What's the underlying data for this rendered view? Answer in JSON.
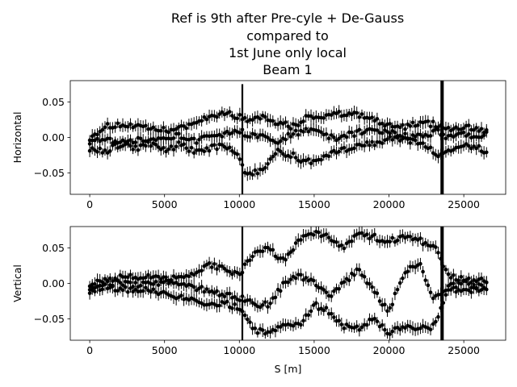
{
  "figure": {
    "title_lines": [
      "Ref is 9th after Pre-cyle + De-Gauss",
      "compared to",
      "1st June only local",
      "Beam 1"
    ]
  },
  "chart_data": [
    {
      "type": "scatter",
      "panel": "top",
      "ylabel": "Horizontal",
      "xlabel": "",
      "xlim": [
        -1300,
        27800
      ],
      "ylim": [
        -0.08,
        0.08
      ],
      "xticks": [
        0,
        5000,
        10000,
        15000,
        20000,
        25000
      ],
      "yticks": [
        -0.05,
        0.0,
        0.05
      ],
      "ytick_labels": [
        "−0.05",
        "0.00",
        "0.05"
      ],
      "error_bars": true,
      "color": "#000000",
      "grid": false,
      "spikes": [
        {
          "x": 10200,
          "y_range": [
            -0.08,
            0.075
          ]
        },
        {
          "x": 23500,
          "y_range": [
            -0.08,
            0.08
          ]
        },
        {
          "x": 23600,
          "y_range": [
            -0.08,
            0.08
          ]
        }
      ],
      "series": [
        {
          "x": [
            0,
            1000,
            2000,
            3000,
            4000,
            5000,
            6000,
            7000,
            8000,
            9000,
            9800,
            10500,
            11500,
            12500,
            13500,
            14500,
            15500,
            16500,
            17500,
            18500,
            19500,
            20500,
            21500,
            22500,
            23200,
            24000,
            25000,
            26000,
            26600
          ],
          "y": [
            0.0,
            0.015,
            0.018,
            0.015,
            0.012,
            0.01,
            0.012,
            0.02,
            0.03,
            0.035,
            0.03,
            0.025,
            0.03,
            0.022,
            0.015,
            0.028,
            0.03,
            0.032,
            0.035,
            0.03,
            0.02,
            0.012,
            0.018,
            0.02,
            0.018,
            0.012,
            0.015,
            0.012,
            0.01
          ]
        },
        {
          "x": [
            0,
            1000,
            2000,
            3000,
            4000,
            5000,
            6000,
            7000,
            8000,
            9000,
            9800,
            10500,
            11500,
            12500,
            13500,
            14500,
            15500,
            16500,
            17500,
            18500,
            19500,
            20500,
            21500,
            22500,
            23200,
            24000,
            25000,
            26000,
            26600
          ],
          "y": [
            -0.005,
            0.0,
            -0.008,
            -0.005,
            -0.002,
            0.0,
            0.002,
            -0.005,
            0.0,
            0.005,
            0.01,
            0.005,
            0.0,
            -0.005,
            0.005,
            0.01,
            0.005,
            0.0,
            0.005,
            0.01,
            0.008,
            0.005,
            0.0,
            0.005,
            0.008,
            0.0,
            0.005,
            0.0,
            0.005
          ]
        },
        {
          "x": [
            0,
            1000,
            2000,
            3000,
            4000,
            5000,
            6000,
            7000,
            8000,
            9000,
            9800,
            10500,
            11500,
            12500,
            13500,
            14500,
            15500,
            16500,
            17500,
            18500,
            19500,
            20500,
            21500,
            22500,
            23200,
            24000,
            25000,
            26000,
            26600
          ],
          "y": [
            -0.015,
            -0.02,
            -0.01,
            -0.015,
            -0.01,
            -0.018,
            -0.01,
            -0.02,
            -0.015,
            -0.01,
            -0.02,
            -0.055,
            -0.045,
            -0.02,
            -0.025,
            -0.035,
            -0.03,
            -0.02,
            -0.015,
            -0.01,
            -0.005,
            0.0,
            -0.005,
            -0.01,
            -0.03,
            -0.02,
            -0.01,
            -0.015,
            -0.02
          ]
        }
      ]
    },
    {
      "type": "scatter",
      "panel": "bottom",
      "ylabel": "Vertical",
      "xlabel": "S [m]",
      "xlim": [
        -1300,
        27800
      ],
      "ylim": [
        -0.08,
        0.08
      ],
      "xticks": [
        0,
        5000,
        10000,
        15000,
        20000,
        25000
      ],
      "xtick_labels": [
        "0",
        "5000",
        "10000",
        "15000",
        "20000",
        "25000"
      ],
      "yticks": [
        -0.05,
        0.0,
        0.05
      ],
      "ytick_labels": [
        "−0.05",
        "0.00",
        "0.05"
      ],
      "error_bars": true,
      "color": "#000000",
      "grid": false,
      "spikes": [
        {
          "x": 10200,
          "y_range": [
            -0.08,
            0.08
          ]
        },
        {
          "x": 23500,
          "y_range": [
            -0.08,
            0.08
          ]
        },
        {
          "x": 23600,
          "y_range": [
            -0.08,
            0.08
          ]
        }
      ],
      "series": [
        {
          "x": [
            0,
            1000,
            2000,
            3000,
            4000,
            5000,
            6000,
            7000,
            8000,
            9000,
            10000,
            11000,
            12000,
            13000,
            14000,
            15000,
            16000,
            17000,
            18000,
            19000,
            20000,
            21000,
            22000,
            23000,
            24000,
            25000,
            26000,
            26600
          ],
          "y": [
            0.0,
            0.005,
            0.008,
            0.01,
            0.008,
            0.005,
            0.01,
            0.015,
            0.025,
            0.02,
            0.01,
            0.045,
            0.05,
            0.03,
            0.06,
            0.07,
            0.065,
            0.05,
            0.07,
            0.065,
            0.06,
            0.065,
            0.06,
            0.055,
            0.01,
            0.005,
            0.005,
            0.002
          ]
        },
        {
          "x": [
            0,
            1000,
            2000,
            3000,
            4000,
            5000,
            6000,
            7000,
            8000,
            9000,
            10000,
            11000,
            12000,
            13000,
            14000,
            15000,
            16000,
            17000,
            18000,
            19000,
            20000,
            21000,
            22000,
            23000,
            24000,
            25000,
            26000,
            26600
          ],
          "y": [
            -0.005,
            0.0,
            0.002,
            -0.002,
            0.0,
            0.002,
            -0.002,
            -0.005,
            -0.01,
            -0.015,
            -0.02,
            -0.03,
            -0.03,
            0.0,
            0.01,
            0.0,
            -0.02,
            0.0,
            0.02,
            -0.01,
            -0.04,
            0.015,
            0.03,
            -0.02,
            -0.005,
            0.0,
            -0.005,
            0.0
          ]
        },
        {
          "x": [
            0,
            1000,
            2000,
            3000,
            4000,
            5000,
            6000,
            7000,
            8000,
            9000,
            10000,
            11000,
            12000,
            13000,
            14000,
            15000,
            16000,
            17000,
            18000,
            19000,
            20000,
            21000,
            22000,
            23000,
            24000,
            25000,
            26000,
            26600
          ],
          "y": [
            -0.01,
            -0.005,
            -0.01,
            -0.008,
            -0.01,
            -0.015,
            -0.02,
            -0.025,
            -0.03,
            -0.028,
            -0.035,
            -0.065,
            -0.07,
            -0.06,
            -0.06,
            -0.03,
            -0.04,
            -0.06,
            -0.065,
            -0.05,
            -0.07,
            -0.06,
            -0.065,
            -0.06,
            -0.01,
            -0.008,
            -0.01,
            -0.005
          ]
        }
      ]
    }
  ]
}
